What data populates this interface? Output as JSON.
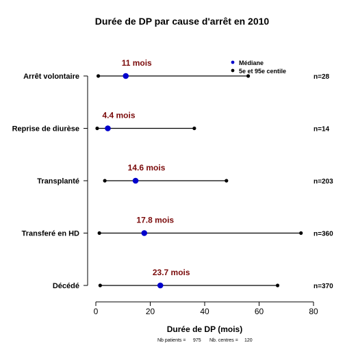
{
  "chart_data": {
    "type": "interval",
    "title": "Durée de DP par cause d'arrêt en 2010",
    "xlabel": "Durée de DP (mois)",
    "footnote": {
      "patients_label": "Nb patients =",
      "patients_value": "975",
      "centres_label": "Nb. centres =",
      "centres_value": "120"
    },
    "xlim": [
      0,
      80
    ],
    "xticks": [
      0,
      20,
      40,
      60,
      80
    ],
    "grid": false,
    "legend": {
      "placement": "top-right",
      "entries": [
        {
          "label": "Médiane",
          "color": "#0000cc"
        },
        {
          "label": "5e et 95e centile",
          "color": "#000000"
        }
      ]
    },
    "colors": {
      "median": "#0000cc",
      "median_label": "#7a0a0a",
      "percentile": "#000000"
    },
    "categories": [
      {
        "label": "Arrêt volontaire",
        "p5": 0.9,
        "median": 11,
        "p95": 56,
        "median_text": "11 mois",
        "n_text": "n=28"
      },
      {
        "label": "Reprise de diurèse",
        "p5": 0.5,
        "median": 4.4,
        "p95": 36.2,
        "median_text": "4.4 mois",
        "n_text": "n=14"
      },
      {
        "label": "Transplanté",
        "p5": 3.3,
        "median": 14.6,
        "p95": 48,
        "median_text": "14.6 mois",
        "n_text": "n=203"
      },
      {
        "label": "Transferé en HD",
        "p5": 1.3,
        "median": 17.8,
        "p95": 75.4,
        "median_text": "17.8 mois",
        "n_text": "n=360"
      },
      {
        "label": "Décédé",
        "p5": 1.6,
        "median": 23.7,
        "p95": 66.8,
        "median_text": "23.7 mois",
        "n_text": "n=370"
      }
    ]
  }
}
